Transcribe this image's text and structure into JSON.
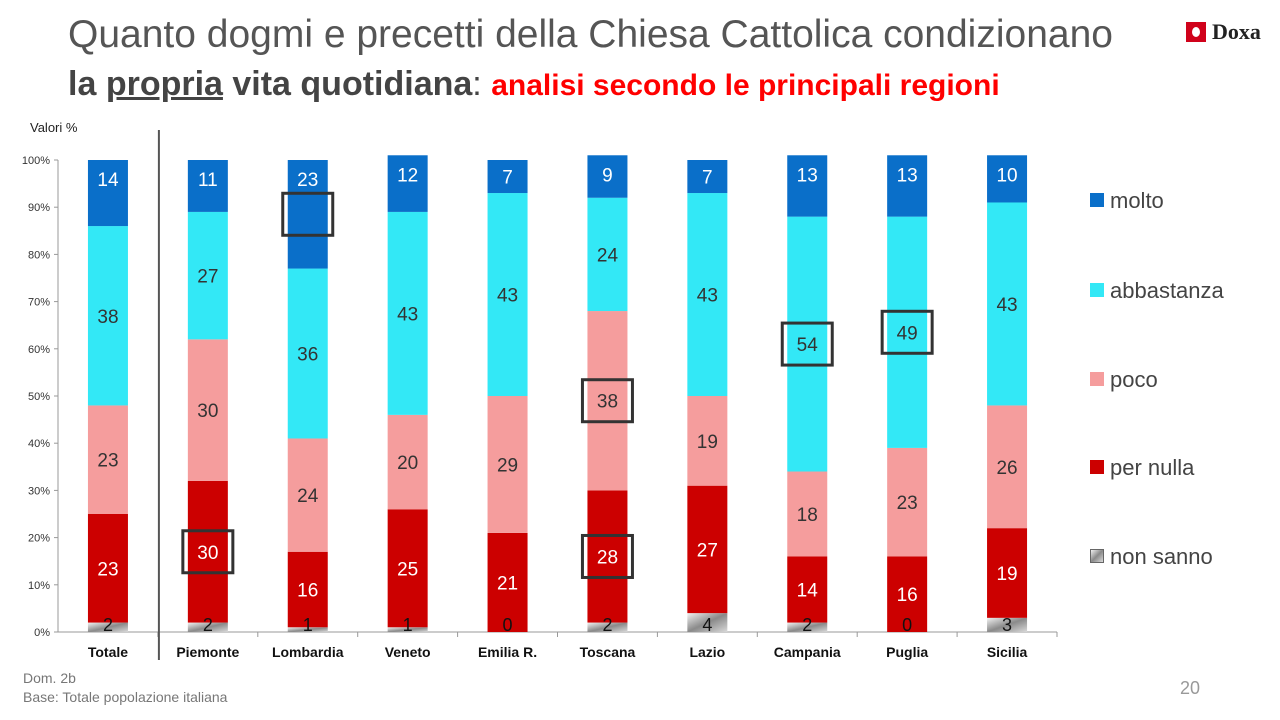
{
  "title": {
    "line1": "Quanto dogmi e precetti della Chiesa Cattolica condizionano",
    "line2_bold": "la ",
    "line2_underlined": "propria",
    "line2_bold_end": " vita quotidiana",
    "line2_colon": ": ",
    "line2_red": "analisi secondo le principali regioni"
  },
  "logo_text": "Doxa",
  "values_label": "Valori %",
  "footer": {
    "question": "Dom. 2b",
    "base": "Base: Totale popolazione italiana"
  },
  "page_number": "20",
  "legend": [
    {
      "name": "molto",
      "color": "#0a6fc9"
    },
    {
      "name": "abbastanza",
      "color": "#33e8f6"
    },
    {
      "name": "poco",
      "color": "#f59d9d"
    },
    {
      "name": "per nulla",
      "color": "#cc0000"
    },
    {
      "name": "non sanno",
      "color": "#a8a8a8",
      "icon": "gradient-square-icon"
    }
  ],
  "chart_data": {
    "type": "bar",
    "stacked": true,
    "ylim": [
      0,
      100
    ],
    "y_ticks": [
      "0%",
      "10%",
      "20%",
      "30%",
      "40%",
      "50%",
      "60%",
      "70%",
      "80%",
      "90%",
      "100%"
    ],
    "categories": [
      "Totale",
      "Piemonte",
      "Lombardia",
      "Veneto",
      "Emilia R.",
      "Toscana",
      "Lazio",
      "Campania",
      "Puglia",
      "Sicilia"
    ],
    "series": [
      {
        "name": "non sanno",
        "values": [
          2,
          2,
          1,
          1,
          0,
          2,
          4,
          2,
          0,
          3
        ]
      },
      {
        "name": "per nulla",
        "values": [
          23,
          30,
          16,
          25,
          21,
          28,
          27,
          14,
          16,
          19
        ]
      },
      {
        "name": "poco",
        "values": [
          23,
          30,
          24,
          20,
          29,
          38,
          19,
          18,
          23,
          26
        ]
      },
      {
        "name": "abbastanza",
        "values": [
          38,
          27,
          36,
          43,
          43,
          24,
          43,
          54,
          49,
          43
        ]
      },
      {
        "name": "molto",
        "values": [
          14,
          11,
          23,
          12,
          7,
          9,
          7,
          13,
          13,
          10
        ]
      }
    ],
    "highlighted": [
      {
        "category": "Piemonte",
        "series": "per nulla"
      },
      {
        "category": "Lombardia",
        "series": "molto"
      },
      {
        "category": "Toscana",
        "series": "poco"
      },
      {
        "category": "Toscana",
        "series": "per nulla"
      },
      {
        "category": "Campania",
        "series": "abbastanza"
      },
      {
        "category": "Puglia",
        "series": "abbastanza"
      }
    ],
    "separator_after": "Totale",
    "grid": false,
    "legend_position": "right"
  }
}
